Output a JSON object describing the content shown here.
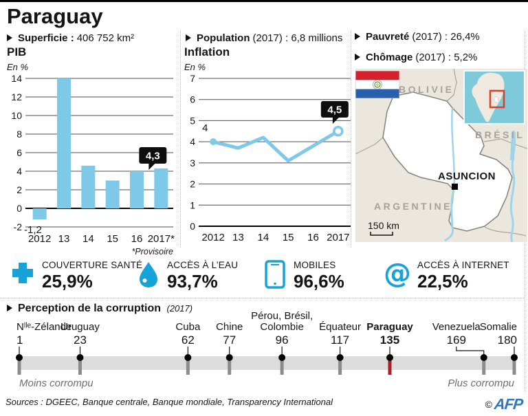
{
  "title": "Paraguay",
  "colors": {
    "accent_blue": "#7ec8e8",
    "icon_blue": "#16a3d8",
    "highlight_red": "#b01e24",
    "afp_blue": "#2e79bd"
  },
  "stats": [
    {
      "label": "Superficie :",
      "value": "406 752 km²"
    },
    {
      "label": "Population",
      "value": "(2017) : 6,8 millions"
    },
    {
      "label": "Pauvreté",
      "value": "(2017) : 26,4%"
    },
    {
      "label": "Chômage",
      "value": "(2017) : 5,2%"
    }
  ],
  "chart_data": [
    {
      "type": "bar",
      "title": "PIB",
      "unit_label": "En %",
      "categories": [
        "2012",
        "13",
        "14",
        "15",
        "16",
        "2017*"
      ],
      "values": [
        -1.2,
        14,
        4.6,
        3,
        4,
        4.3
      ],
      "ylim": [
        -2,
        14
      ],
      "ytick_step": 2,
      "grid": true,
      "bar_color": "#7ec8e8",
      "annotations": {
        "first_value_label": "-1,2",
        "last_value_label": "4,3"
      },
      "footnote": "*Provisoire"
    },
    {
      "type": "line",
      "title": "Inflation",
      "unit_label": "En %",
      "categories": [
        "2012",
        "13",
        "14",
        "15",
        "16",
        "2017"
      ],
      "values": [
        4,
        3.7,
        4.2,
        3.1,
        3.8,
        4.5
      ],
      "ylim": [
        0,
        7
      ],
      "ytick_step": 1,
      "grid": true,
      "line_color": "#7ec8e8",
      "annotations": {
        "first_value_label": "4",
        "last_value_label": "4,5"
      }
    }
  ],
  "map": {
    "labels": {
      "bolivia": "BOLIVIE",
      "brazil": "BRÉSIL",
      "argentina": "ARGENTINE",
      "capital": "ASUNCION",
      "scale": "150 km"
    }
  },
  "indicators": [
    {
      "icon": "health-cross-icon",
      "label": "COUVERTURE SANTÉ",
      "value": "25,9%"
    },
    {
      "icon": "water-drop-icon",
      "label": "ACCÈS À L’EAU",
      "value": "93,7%"
    },
    {
      "icon": "mobile-phone-icon",
      "label": "MOBILES",
      "value": "96,6%"
    },
    {
      "icon": "at-sign-icon",
      "label": "ACCÈS À INTERNET",
      "value": "22,5%"
    }
  ],
  "corruption": {
    "title": "Perception de la corruption",
    "year_note": "(2017)",
    "scale_range": [
      1,
      180
    ],
    "items": [
      {
        "country": "Nˡˡᵉ-Zélande",
        "rank": 1
      },
      {
        "country": "Uruguay",
        "rank": 23
      },
      {
        "country": "Cuba",
        "rank": 62
      },
      {
        "country": "Chine",
        "rank": 77
      },
      {
        "country": "Pérou, Brésil,|Colombie",
        "rank": 96
      },
      {
        "country": "Équateur",
        "rank": 117
      },
      {
        "country": "Paraguay",
        "rank": 135,
        "highlight": true
      },
      {
        "country": "Venezuela",
        "rank": 169,
        "label_dx": -40
      },
      {
        "country": "Somalie",
        "rank": 180
      }
    ],
    "left_label": "Moins corrompu",
    "right_label": "Plus corrompu",
    "highlight_color": "#b01e24"
  },
  "footer": {
    "sources": "Sources : DGEEC, Banque centrale, Banque mondiale, Transparency International",
    "copyright": "©",
    "logo": "AFP"
  }
}
